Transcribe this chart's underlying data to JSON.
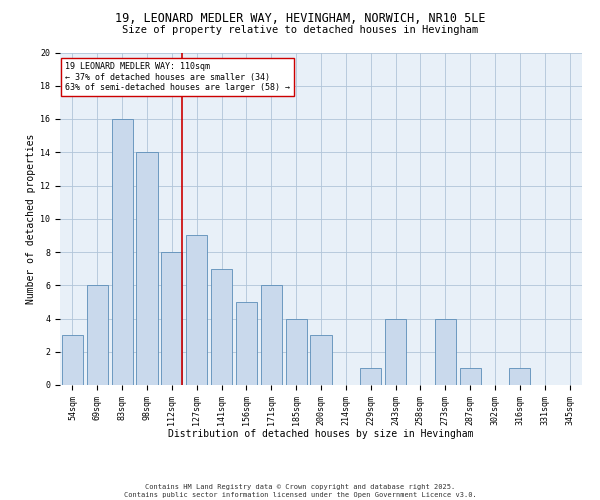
{
  "title1": "19, LEONARD MEDLER WAY, HEVINGHAM, NORWICH, NR10 5LE",
  "title2": "Size of property relative to detached houses in Hevingham",
  "xlabel": "Distribution of detached houses by size in Hevingham",
  "ylabel": "Number of detached properties",
  "bar_color": "#c9d9ec",
  "bar_edge_color": "#5b8db8",
  "grid_color": "#b0c4d8",
  "bg_color": "#e8f0f8",
  "vline_color": "#cc0000",
  "vline_bar_index": 4,
  "categories": [
    "54sqm",
    "69sqm",
    "83sqm",
    "98sqm",
    "112sqm",
    "127sqm",
    "141sqm",
    "156sqm",
    "171sqm",
    "185sqm",
    "200sqm",
    "214sqm",
    "229sqm",
    "243sqm",
    "258sqm",
    "273sqm",
    "287sqm",
    "302sqm",
    "316sqm",
    "331sqm",
    "345sqm"
  ],
  "values": [
    3,
    6,
    16,
    14,
    8,
    9,
    7,
    5,
    6,
    4,
    3,
    0,
    1,
    4,
    0,
    4,
    1,
    0,
    1,
    0,
    0
  ],
  "ylim": [
    0,
    20
  ],
  "yticks": [
    0,
    2,
    4,
    6,
    8,
    10,
    12,
    14,
    16,
    18,
    20
  ],
  "annotation_text": "19 LEONARD MEDLER WAY: 110sqm\n← 37% of detached houses are smaller (34)\n63% of semi-detached houses are larger (58) →",
  "annotation_box_color": "#ffffff",
  "annotation_box_edge": "#cc0000",
  "footer": "Contains HM Land Registry data © Crown copyright and database right 2025.\nContains public sector information licensed under the Open Government Licence v3.0.",
  "title1_fontsize": 8.5,
  "title2_fontsize": 7.5,
  "xlabel_fontsize": 7,
  "ylabel_fontsize": 7,
  "tick_fontsize": 6,
  "annotation_fontsize": 6,
  "footer_fontsize": 5
}
